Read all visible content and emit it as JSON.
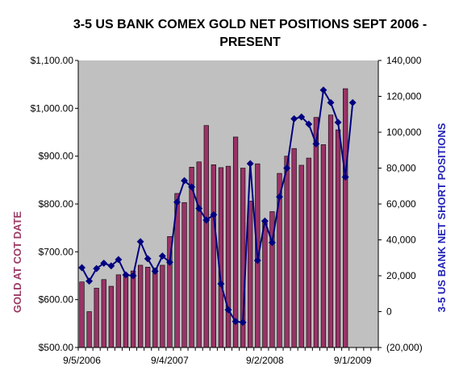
{
  "chart_data": {
    "type": "bar",
    "title": "3-5 US BANK COMEX GOLD NET POSITIONS SEPT 2006 - PRESENT",
    "ylabel": "GOLD AT COT DATE",
    "y2label": "3-5 US BANK NET SHORT POSITIONS",
    "ylim": [
      500,
      1100
    ],
    "y2lim": [
      -20000,
      140000
    ],
    "grid": false,
    "legend": "none",
    "colors": {
      "plot_area": "#c0c0c0",
      "bar_fill": "#993366",
      "line": "#000080",
      "negative_tick": "#ff0000"
    },
    "y_ticks": [
      "$500.00",
      "$600.00",
      "$700.00",
      "$800.00",
      "$900.00",
      "$1,000.00",
      "$1,100.00"
    ],
    "y2_ticks": [
      "(20,000)",
      "0",
      "20,000",
      "40,000",
      "60,000",
      "80,000",
      "100,000",
      "120,000",
      "140,000"
    ],
    "x_ticks": [
      {
        "index": 0,
        "label": "9/5/2006"
      },
      {
        "index": 12,
        "label": "9/4/2007"
      },
      {
        "index": 25,
        "label": "9/2/2008"
      },
      {
        "index": 37,
        "label": "9/1/2009"
      }
    ],
    "categories_count": 41,
    "series": [
      {
        "type": "bar",
        "axis": "left",
        "values": [
          637,
          575,
          624,
          642,
          628,
          652,
          650,
          660,
          672,
          668,
          666,
          672,
          732,
          822,
          803,
          877,
          888,
          964,
          882,
          876,
          879,
          940,
          875,
          806,
          884,
          764,
          784,
          864,
          900,
          916,
          881,
          896,
          981,
          924,
          986,
          955,
          1041
        ]
      },
      {
        "type": "line",
        "axis": "right",
        "values": [
          24500,
          17000,
          24000,
          27000,
          25500,
          29000,
          20500,
          20000,
          39000,
          29500,
          22500,
          31000,
          27500,
          61000,
          73000,
          69500,
          57500,
          51000,
          54000,
          15500,
          1000,
          -5500,
          -6000,
          82500,
          28500,
          50500,
          38500,
          64000,
          80000,
          107500,
          108500,
          104500,
          93500,
          123500,
          116500,
          105500,
          75000,
          116500
        ]
      }
    ]
  }
}
